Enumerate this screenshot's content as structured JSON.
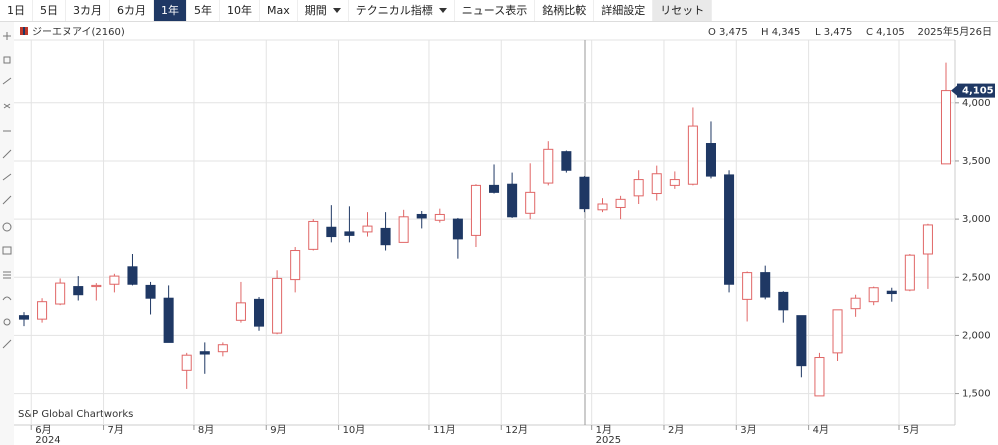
{
  "toolbar": {
    "buttons": [
      "1日",
      "5日",
      "3カ月",
      "6カ月",
      "1年",
      "5年",
      "10年",
      "Max",
      "期間",
      "テクニカル指標",
      "ニュース表示",
      "銘柄比較",
      "詳細設定",
      "リセット"
    ],
    "active": "1年"
  },
  "header": {
    "symbol": "ジーエヌアイ(2160)",
    "ohlc": [
      "O 3,475",
      "H 4,345",
      "L 3,475",
      "C 4,105"
    ],
    "date": "2025年5月26日"
  },
  "chart_data": {
    "type": "candlestick",
    "watermark": "S&P Global Chartworks",
    "categories": [
      null,
      "6月",
      null,
      null,
      null,
      "7月",
      null,
      null,
      null,
      null,
      "8月",
      null,
      null,
      null,
      "9月",
      null,
      null,
      null,
      "10月",
      null,
      null,
      null,
      null,
      "11月",
      null,
      null,
      null,
      "12月",
      null,
      null,
      null,
      null,
      "1月",
      null,
      null,
      null,
      "2月",
      null,
      null,
      null,
      "3月",
      null,
      null,
      null,
      "4月",
      null,
      null,
      null,
      null,
      "5月",
      null,
      null
    ],
    "year_labels": [
      null,
      "2024",
      null,
      null,
      null,
      null,
      null,
      null,
      null,
      null,
      null,
      null,
      null,
      null,
      null,
      null,
      null,
      null,
      null,
      null,
      null,
      null,
      null,
      null,
      null,
      null,
      null,
      null,
      null,
      null,
      null,
      null,
      "2025",
      null,
      null,
      null,
      null,
      null,
      null,
      null,
      null,
      null,
      null,
      null,
      null,
      null,
      null,
      null,
      null,
      null,
      null,
      null
    ],
    "open": [
      2170,
      2140,
      2270,
      2420,
      2420,
      2440,
      2590,
      2430,
      2320,
      1700,
      1860,
      1860,
      2130,
      2310,
      2020,
      2480,
      2740,
      2930,
      2890,
      2890,
      2920,
      2800,
      3040,
      2990,
      3000,
      2860,
      3290,
      3300,
      3050,
      3310,
      3580,
      3360,
      3080,
      3100,
      3200,
      3220,
      3290,
      3300,
      3650,
      3380,
      2310,
      2540,
      2370,
      2170,
      1480,
      1850,
      2230,
      2290,
      2380,
      2390,
      2700,
      3475
    ],
    "high": [
      2200,
      2320,
      2490,
      2510,
      2450,
      2530,
      2700,
      2460,
      2430,
      1850,
      1940,
      1940,
      2460,
      2330,
      2560,
      2760,
      3000,
      3120,
      3110,
      3060,
      3060,
      3080,
      3070,
      3090,
      3010,
      3300,
      3470,
      3400,
      3480,
      3670,
      3590,
      3370,
      3180,
      3200,
      3420,
      3460,
      3410,
      3960,
      3840,
      3420,
      2550,
      2600,
      2380,
      2170,
      1850,
      2220,
      2350,
      2420,
      2410,
      2700,
      2960,
      4345
    ],
    "low": [
      2080,
      2110,
      2260,
      2300,
      2300,
      2370,
      2430,
      2180,
      1940,
      1540,
      1670,
      1820,
      2110,
      2040,
      2010,
      2370,
      2730,
      2800,
      2800,
      2850,
      2730,
      2800,
      2920,
      2970,
      2660,
      2760,
      3220,
      3010,
      3000,
      3290,
      3400,
      3060,
      3060,
      3000,
      3130,
      3160,
      3260,
      3290,
      3350,
      2370,
      2120,
      2310,
      2110,
      1640,
      1480,
      1780,
      2160,
      2260,
      2290,
      2380,
      2400,
      3475
    ],
    "close": [
      2140,
      2290,
      2450,
      2350,
      2430,
      2510,
      2440,
      2320,
      1940,
      1830,
      1840,
      1920,
      2280,
      2080,
      2490,
      2730,
      2980,
      2850,
      2860,
      2940,
      2780,
      3020,
      3010,
      3040,
      2830,
      3290,
      3230,
      3020,
      3230,
      3600,
      3420,
      3090,
      3130,
      3170,
      3340,
      3390,
      3340,
      3800,
      3370,
      2440,
      2540,
      2330,
      2220,
      1740,
      1810,
      2220,
      2320,
      2410,
      2360,
      2690,
      2950,
      4105
    ],
    "up_color": "#e06666",
    "down_color": "#1f3864",
    "ylim": [
      1290,
      4540
    ],
    "yticks": [
      {
        "value": 1500,
        "label": "1,500"
      },
      {
        "value": 2000,
        "label": "2,000"
      },
      {
        "value": 2500,
        "label": "2,500"
      },
      {
        "value": 3000,
        "label": "3,000"
      },
      {
        "value": 3500,
        "label": "3,500"
      },
      {
        "value": 4000,
        "label": "4,000"
      }
    ],
    "last_price": {
      "value": 4105,
      "label": "4,105"
    },
    "grid": true
  }
}
